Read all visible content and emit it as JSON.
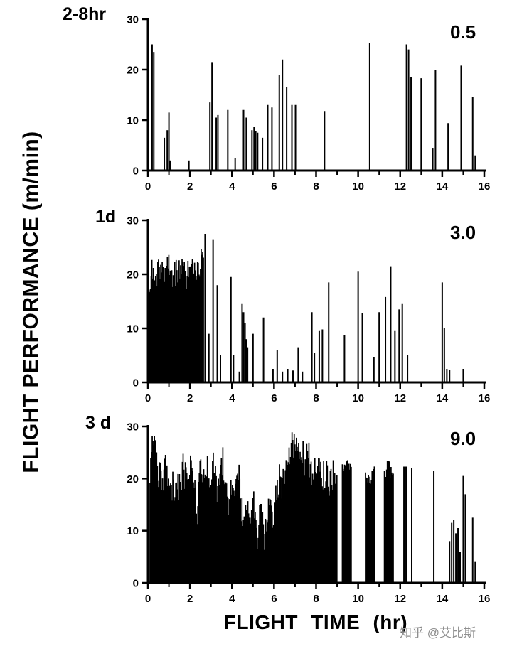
{
  "figure": {
    "y_axis_title": "FLIGHT PERFORMANCE (m/min)",
    "x_axis_title": "FLIGHT TIME (hr)",
    "watermark": "知乎 @艾比斯"
  },
  "chart_data": [
    {
      "type": "bar",
      "title": "2-8hr",
      "annotation": "0.5",
      "xlabel": "FLIGHT TIME (hr)",
      "ylabel": "FLIGHT PERFORMANCE (m/min)",
      "xlim": [
        0,
        16
      ],
      "ylim": [
        0,
        30
      ],
      "x_ticks": [
        0,
        2,
        4,
        6,
        8,
        10,
        12,
        14,
        16
      ],
      "y_ticks": [
        0,
        10,
        20,
        30
      ],
      "spikes": [
        [
          0.2,
          25
        ],
        [
          0.28,
          23.5
        ],
        [
          0.78,
          6.5
        ],
        [
          0.92,
          8
        ],
        [
          1.0,
          11.5
        ],
        [
          1.06,
          2
        ],
        [
          1.95,
          2
        ],
        [
          2.95,
          13.5
        ],
        [
          3.05,
          21.5
        ],
        [
          3.25,
          10.5
        ],
        [
          3.33,
          11
        ],
        [
          3.8,
          12
        ],
        [
          4.15,
          2.5
        ],
        [
          4.55,
          12
        ],
        [
          4.68,
          10.5
        ],
        [
          4.95,
          8
        ],
        [
          5.05,
          8.7
        ],
        [
          5.13,
          7.8
        ],
        [
          5.22,
          7.5
        ],
        [
          5.45,
          6.5
        ],
        [
          5.7,
          13
        ],
        [
          5.9,
          12.5
        ],
        [
          6.25,
          19
        ],
        [
          6.4,
          22
        ],
        [
          6.6,
          16.5
        ],
        [
          6.85,
          13
        ],
        [
          7.02,
          13
        ],
        [
          8.4,
          11.8
        ],
        [
          10.55,
          25.3
        ],
        [
          12.3,
          25
        ],
        [
          12.4,
          24
        ],
        [
          12.48,
          18.5
        ],
        [
          12.55,
          18.5
        ],
        [
          13.0,
          18.3
        ],
        [
          13.55,
          4.5
        ],
        [
          13.68,
          20
        ],
        [
          14.28,
          9.4
        ],
        [
          14.9,
          20.8
        ],
        [
          15.45,
          14.6
        ],
        [
          15.57,
          3
        ]
      ],
      "dense_regions": []
    },
    {
      "type": "bar",
      "title": "1d",
      "annotation": "3.0",
      "xlabel": "FLIGHT TIME (hr)",
      "ylabel": "FLIGHT PERFORMANCE (m/min)",
      "xlim": [
        0,
        16
      ],
      "ylim": [
        0,
        30
      ],
      "x_ticks": [
        0,
        2,
        4,
        6,
        8,
        10,
        12,
        14,
        16
      ],
      "y_ticks": [
        0,
        10,
        20,
        30
      ],
      "spikes": [
        [
          2.72,
          27.5
        ],
        [
          2.9,
          9
        ],
        [
          3.1,
          26.5
        ],
        [
          3.3,
          18
        ],
        [
          3.45,
          5
        ],
        [
          3.95,
          19.5
        ],
        [
          4.07,
          5
        ],
        [
          4.35,
          2
        ],
        [
          4.48,
          14.5
        ],
        [
          4.55,
          13
        ],
        [
          4.62,
          11
        ],
        [
          4.68,
          8
        ],
        [
          4.74,
          6.5
        ],
        [
          5.0,
          9
        ],
        [
          5.5,
          12
        ],
        [
          5.95,
          2.5
        ],
        [
          6.15,
          6
        ],
        [
          6.4,
          2
        ],
        [
          6.65,
          2.5
        ],
        [
          6.9,
          2.2
        ],
        [
          7.15,
          6.5
        ],
        [
          7.35,
          2
        ],
        [
          7.8,
          13
        ],
        [
          7.92,
          5.5
        ],
        [
          8.15,
          9.5
        ],
        [
          8.3,
          9.8
        ],
        [
          8.6,
          18.5
        ],
        [
          9.35,
          8.7
        ],
        [
          10.0,
          20.5
        ],
        [
          10.2,
          12.8
        ],
        [
          10.75,
          4.7
        ],
        [
          11.0,
          13
        ],
        [
          11.3,
          15.8
        ],
        [
          11.55,
          21.5
        ],
        [
          11.75,
          9.5
        ],
        [
          11.95,
          13.5
        ],
        [
          12.1,
          14.5
        ],
        [
          12.35,
          5
        ],
        [
          14.0,
          18.5
        ],
        [
          14.1,
          10
        ],
        [
          14.22,
          2.5
        ],
        [
          14.35,
          2.3
        ],
        [
          15.0,
          2.5
        ]
      ],
      "dense_regions": [
        {
          "x0": 0.05,
          "x1": 2.65,
          "jitter": 5,
          "envelope": [
            [
              0.05,
              21
            ],
            [
              0.2,
              23
            ],
            [
              0.4,
              22
            ],
            [
              0.6,
              24
            ],
            [
              0.8,
              22
            ],
            [
              1.0,
              25
            ],
            [
              1.2,
              22
            ],
            [
              1.4,
              23
            ],
            [
              1.6,
              24
            ],
            [
              1.8,
              22
            ],
            [
              2.0,
              23
            ],
            [
              2.2,
              25
            ],
            [
              2.4,
              23
            ],
            [
              2.55,
              26
            ],
            [
              2.65,
              24
            ]
          ]
        }
      ]
    },
    {
      "type": "bar",
      "title": "3 d",
      "annotation": "9.0",
      "xlabel": "FLIGHT TIME (hr)",
      "ylabel": "FLIGHT PERFORMANCE (m/min)",
      "xlim": [
        0,
        16
      ],
      "ylim": [
        0,
        30
      ],
      "x_ticks": [
        0,
        2,
        4,
        6,
        8,
        10,
        12,
        14,
        16
      ],
      "y_ticks": [
        0,
        10,
        20,
        30
      ],
      "spikes": [
        [
          11.55,
          5.5
        ],
        [
          12.18,
          22.3
        ],
        [
          12.28,
          22.3
        ],
        [
          12.55,
          22
        ],
        [
          13.6,
          21.5
        ],
        [
          14.35,
          8
        ],
        [
          14.45,
          11.5
        ],
        [
          14.55,
          12
        ],
        [
          14.65,
          9.5
        ],
        [
          14.75,
          10.5
        ],
        [
          14.85,
          6
        ],
        [
          15.0,
          20.5
        ],
        [
          15.1,
          17
        ],
        [
          15.45,
          12.5
        ],
        [
          15.57,
          4
        ]
      ],
      "dense_regions": [
        {
          "x0": 0.1,
          "x1": 9.0,
          "jitter": 7,
          "envelope": [
            [
              0.1,
              23
            ],
            [
              0.18,
              29
            ],
            [
              0.3,
              30
            ],
            [
              0.45,
              24
            ],
            [
              0.6,
              23
            ],
            [
              0.8,
              25
            ],
            [
              1.0,
              23
            ],
            [
              1.2,
              22
            ],
            [
              1.4,
              24
            ],
            [
              1.55,
              20
            ],
            [
              1.7,
              26
            ],
            [
              1.9,
              21
            ],
            [
              2.05,
              27
            ],
            [
              2.2,
              24
            ],
            [
              2.35,
              17
            ],
            [
              2.5,
              27
            ],
            [
              2.65,
              22
            ],
            [
              2.8,
              26
            ],
            [
              2.95,
              19
            ],
            [
              3.1,
              27
            ],
            [
              3.25,
              21
            ],
            [
              3.4,
              24
            ],
            [
              3.55,
              28
            ],
            [
              3.7,
              22
            ],
            [
              3.85,
              18
            ],
            [
              4.0,
              24
            ],
            [
              4.15,
              20
            ],
            [
              4.3,
              26
            ],
            [
              4.45,
              18
            ],
            [
              4.6,
              15
            ],
            [
              4.75,
              21
            ],
            [
              4.9,
              13
            ],
            [
              5.05,
              19
            ],
            [
              5.2,
              12
            ],
            [
              5.35,
              22
            ],
            [
              5.5,
              11
            ],
            [
              5.65,
              14
            ],
            [
              5.8,
              18
            ],
            [
              5.95,
              13
            ],
            [
              6.1,
              21
            ],
            [
              6.25,
              23
            ],
            [
              6.4,
              22
            ],
            [
              6.55,
              25
            ],
            [
              6.7,
              27
            ],
            [
              6.85,
              29
            ],
            [
              7.0,
              30
            ],
            [
              7.15,
              28
            ],
            [
              7.3,
              29
            ],
            [
              7.45,
              27
            ],
            [
              7.6,
              28
            ],
            [
              7.75,
              26
            ],
            [
              7.9,
              25
            ],
            [
              8.05,
              24
            ],
            [
              8.2,
              26
            ],
            [
              8.35,
              24
            ],
            [
              8.5,
              25
            ],
            [
              8.65,
              23
            ],
            [
              8.8,
              24
            ],
            [
              8.95,
              23
            ]
          ]
        },
        {
          "x0": 9.25,
          "x1": 9.68,
          "jitter": 2,
          "envelope": [
            [
              9.25,
              23
            ],
            [
              9.45,
              24
            ],
            [
              9.68,
              23
            ]
          ]
        },
        {
          "x0": 10.35,
          "x1": 10.78,
          "jitter": 2.5,
          "envelope": [
            [
              10.35,
              22.5
            ],
            [
              10.55,
              21
            ],
            [
              10.78,
              22.5
            ]
          ]
        },
        {
          "x0": 11.25,
          "x1": 11.68,
          "jitter": 3,
          "envelope": [
            [
              11.25,
              22
            ],
            [
              11.45,
              24
            ],
            [
              11.68,
              21
            ]
          ]
        }
      ]
    }
  ]
}
